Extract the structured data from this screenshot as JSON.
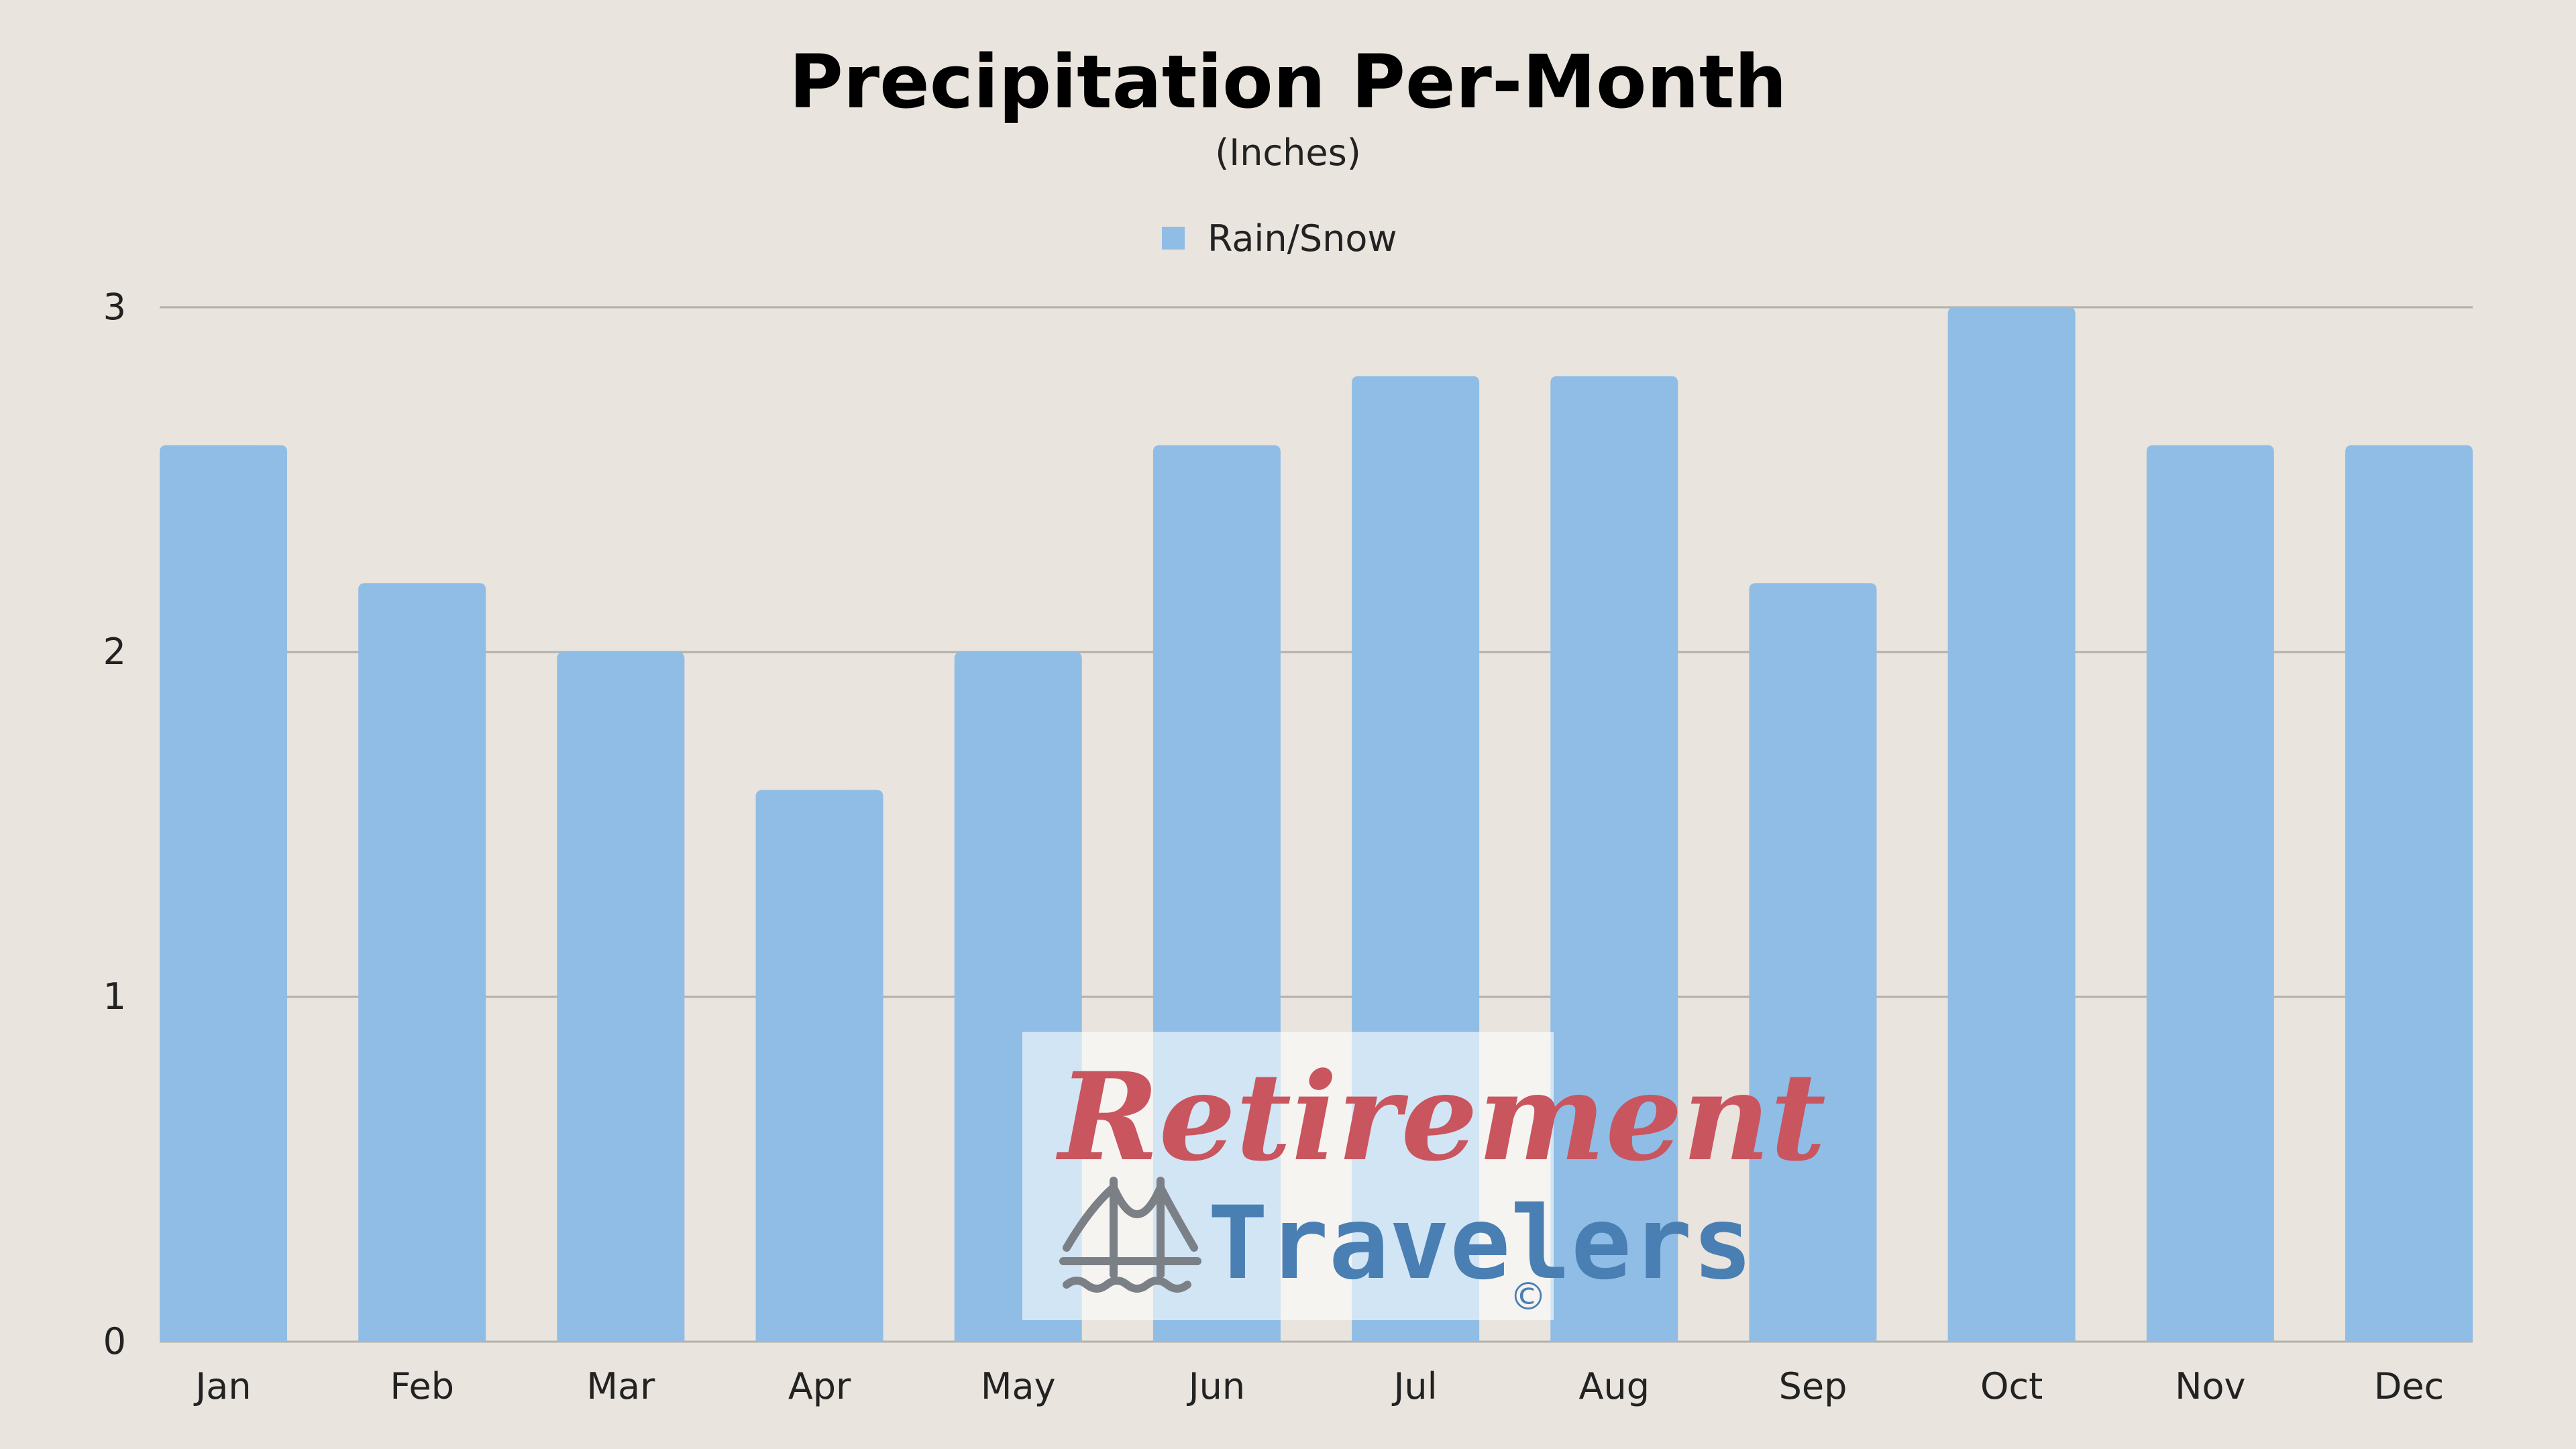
{
  "chart_data": {
    "type": "bar",
    "title": "Precipitation Per-Month",
    "subtitle": "(Inches)",
    "categories": [
      "Jan",
      "Feb",
      "Mar",
      "Apr",
      "May",
      "Jun",
      "Jul",
      "Aug",
      "Sep",
      "Oct",
      "Nov",
      "Dec"
    ],
    "series": [
      {
        "name": "Rain/Snow",
        "values": [
          2.6,
          2.2,
          2.0,
          1.6,
          2.0,
          2.6,
          2.8,
          2.8,
          2.2,
          3.0,
          2.6,
          2.6
        ]
      }
    ],
    "ylim": [
      0,
      3
    ],
    "yticks": [
      "0",
      "1",
      "2",
      "3"
    ],
    "grid": true,
    "legend": "top-center",
    "colors": {
      "bar": "#8fbde6",
      "grid": "#b3b0ab",
      "background": "#e9e4dd"
    }
  },
  "watermark": {
    "line1": "Retirement",
    "line2": "Travelers",
    "copyright": "©",
    "icon": "bridge-icon",
    "colors": {
      "script": "#c9555f",
      "travelers": "#4a7fb3",
      "icon": "#7b7f86"
    }
  }
}
